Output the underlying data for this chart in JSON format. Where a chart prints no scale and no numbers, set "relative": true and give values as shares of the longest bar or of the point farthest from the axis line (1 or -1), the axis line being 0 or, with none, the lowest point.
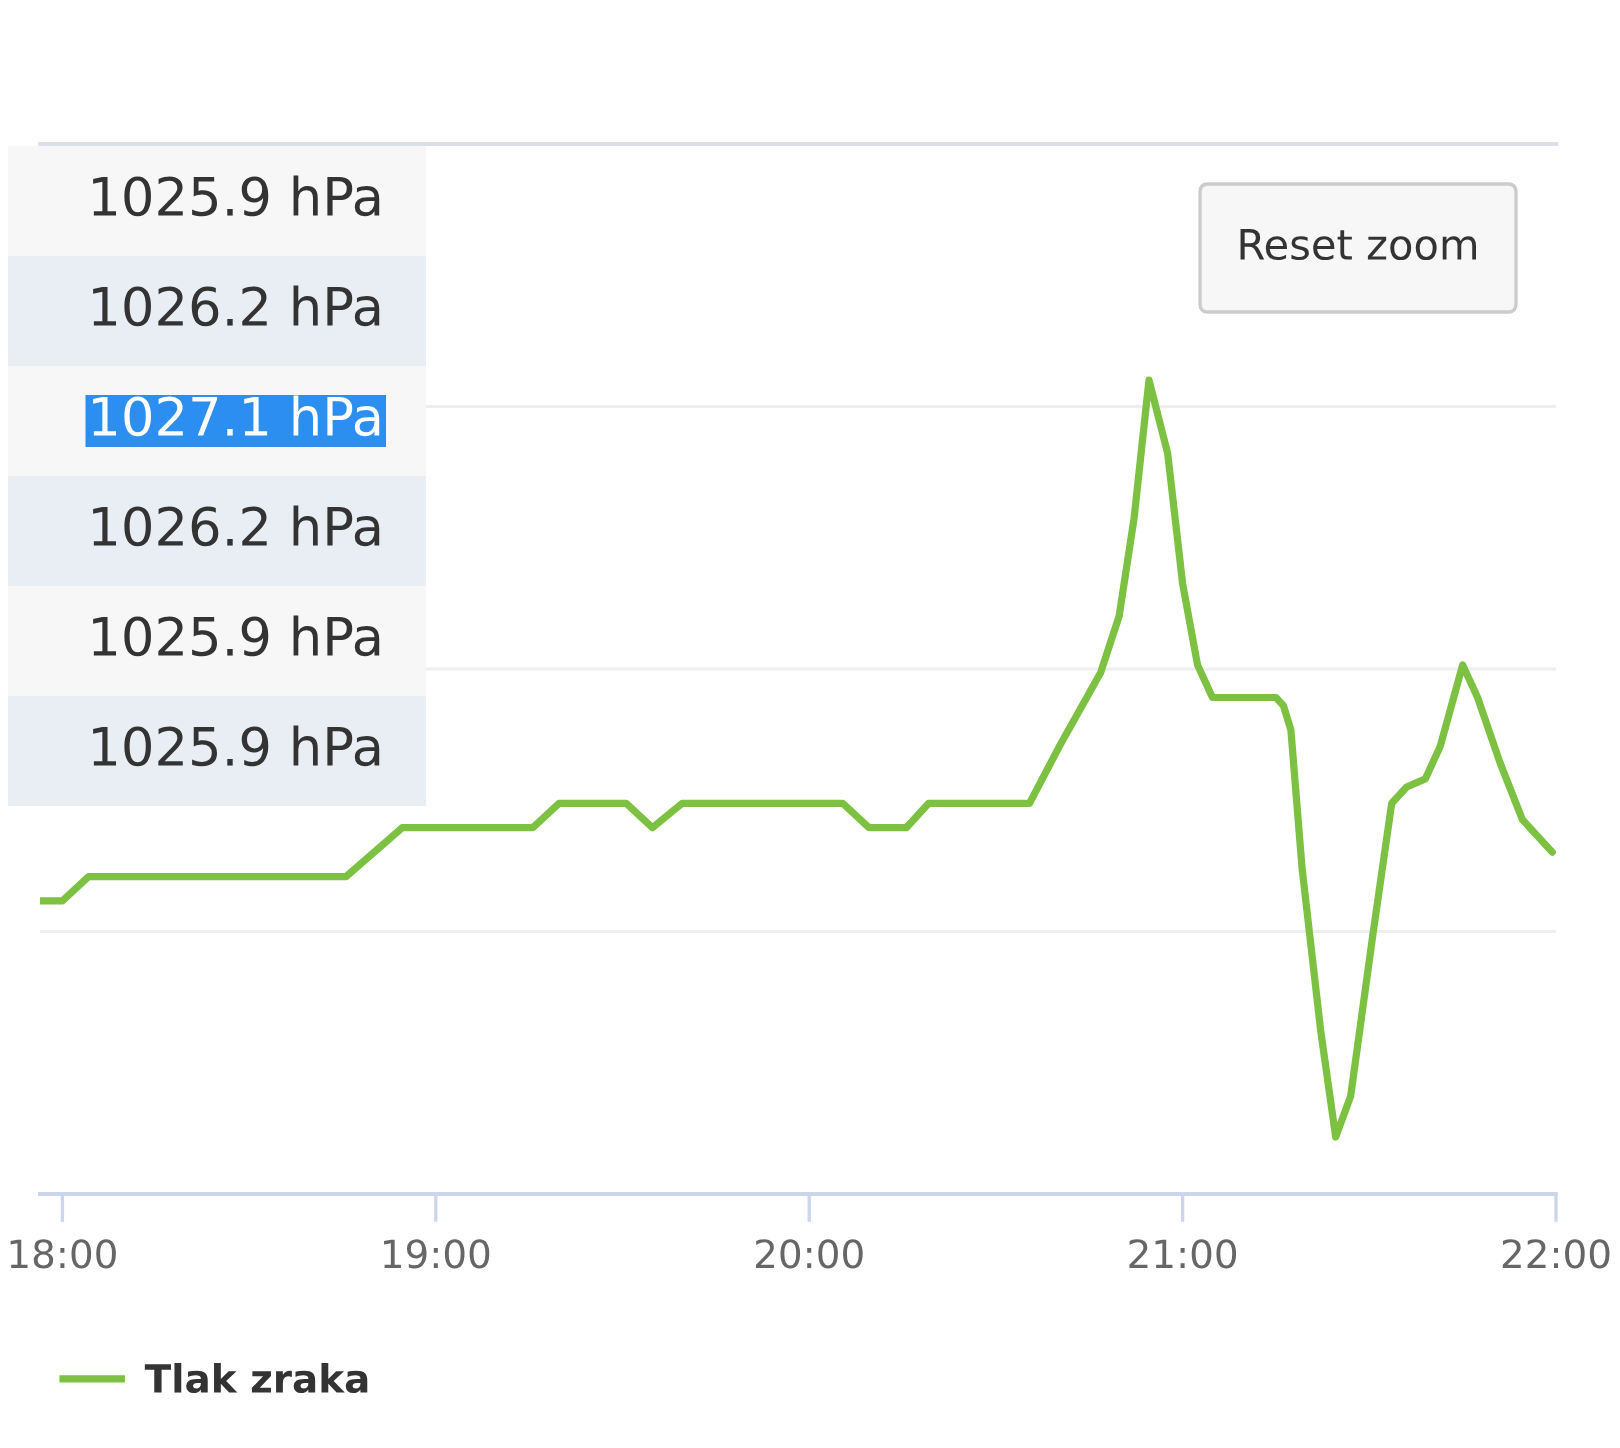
{
  "chart_data": {
    "type": "line",
    "relative": true,
    "x": [
      17.94,
      18.0,
      18.07,
      18.76,
      18.91,
      19.26,
      19.33,
      19.51,
      19.58,
      19.66,
      20.09,
      20.16,
      20.26,
      20.32,
      20.59,
      20.67,
      20.78,
      20.83,
      20.87,
      20.91,
      20.96,
      21.0,
      21.04,
      21.08,
      21.25,
      21.27,
      21.29,
      21.32,
      21.37,
      21.41,
      21.45,
      21.51,
      21.56,
      21.6,
      21.65,
      21.69,
      21.75,
      21.79,
      21.85,
      21.91,
      21.99
    ],
    "series": [
      {
        "name": "Tlak zraka",
        "color": "#7cc142",
        "values": [
          0.36,
          0.36,
          0.39,
          0.39,
          0.45,
          0.45,
          0.48,
          0.48,
          0.45,
          0.48,
          0.48,
          0.45,
          0.45,
          0.48,
          0.48,
          0.55,
          0.64,
          0.71,
          0.83,
          1.0,
          0.91,
          0.75,
          0.65,
          0.61,
          0.61,
          0.6,
          0.57,
          0.4,
          0.2,
          0.07,
          0.12,
          0.32,
          0.48,
          0.5,
          0.51,
          0.55,
          0.65,
          0.61,
          0.53,
          0.46,
          0.42
        ]
      }
    ],
    "xlim": [
      17.94,
      22.0
    ],
    "xticks": [
      {
        "value": 18,
        "label": "18:00"
      },
      {
        "value": 19,
        "label": "19:00"
      },
      {
        "value": 20,
        "label": "20:00"
      },
      {
        "value": 21,
        "label": "21:00"
      },
      {
        "value": 22,
        "label": "22:00"
      }
    ],
    "grid": "y",
    "legend": "bottom left",
    "annotations": [
      "1025.9 hPa",
      "1026.2 hPa",
      "1027.1 hPa",
      "1026.2 hPa",
      "1025.9 hPa",
      "1025.9 hPa",
      "Reset zoom"
    ]
  }
}
